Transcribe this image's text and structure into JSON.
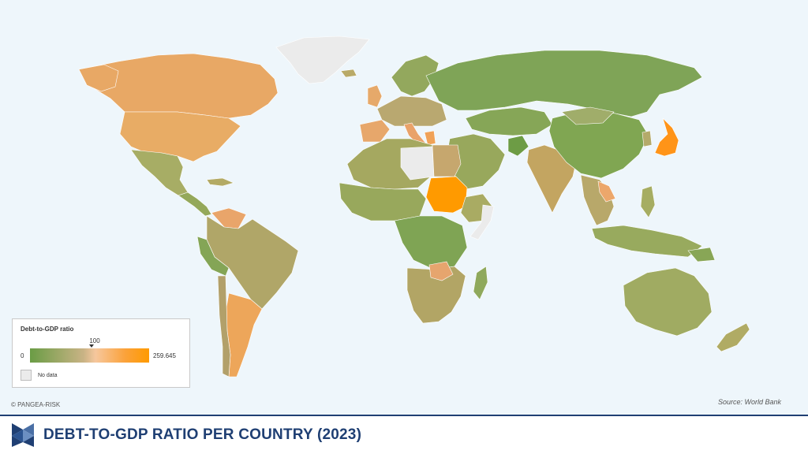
{
  "title": "DEBT-TO-GDP RATIO PER COUNTRY (2023)",
  "copyright": "© PANGEA-RISK",
  "source": "Source: World Bank",
  "legend": {
    "title": "Debt-to-GDP ratio",
    "min_label": "0",
    "mid_label": "100",
    "max_label": "259.645",
    "no_data_label": "No data"
  },
  "colors": {
    "ocean": "#eef6fb",
    "low": "#6a9c45",
    "mid": "#c9b385",
    "high": "#ff9a00",
    "no_data": "#ebebeb",
    "brand": "#1f3f73"
  },
  "icons": {
    "logo": "pangea-risk-logo-icon"
  }
}
